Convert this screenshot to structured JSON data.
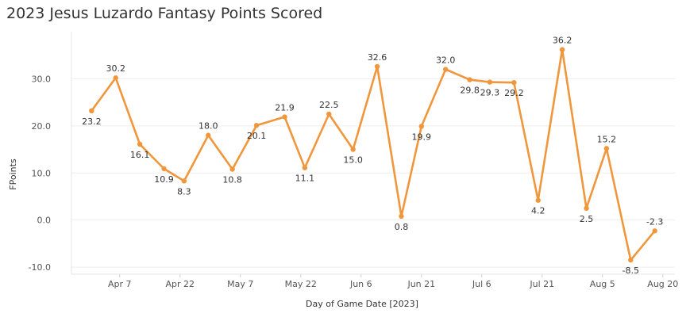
{
  "chart_data": {
    "type": "line",
    "title": "2023 Jesus Luzardo Fantasy Points Scored",
    "xlabel": "Day of Game Date [2023]",
    "ylabel": "FPoints",
    "ylim": [
      -11.5,
      40
    ],
    "grid": true,
    "y_ticks": [
      {
        "value": -10,
        "label": "-10.0"
      },
      {
        "value": 0,
        "label": "0.0"
      },
      {
        "value": 10,
        "label": "10.0"
      },
      {
        "value": 20,
        "label": "20.0"
      },
      {
        "value": 30,
        "label": "30.0"
      }
    ],
    "x_ticks": [
      {
        "date": "2023-04-07",
        "label": "Apr 7"
      },
      {
        "date": "2023-04-22",
        "label": "Apr 22"
      },
      {
        "date": "2023-05-07",
        "label": "May 7"
      },
      {
        "date": "2023-05-22",
        "label": "May 22"
      },
      {
        "date": "2023-06-06",
        "label": "Jun 6"
      },
      {
        "date": "2023-06-21",
        "label": "Jun 21"
      },
      {
        "date": "2023-07-06",
        "label": "Jul 6"
      },
      {
        "date": "2023-07-21",
        "label": "Jul 21"
      },
      {
        "date": "2023-08-05",
        "label": "Aug 5"
      },
      {
        "date": "2023-08-20",
        "label": "Aug 20"
      }
    ],
    "xlim": [
      "2023-03-26",
      "2023-08-23"
    ],
    "color": "#F0963C",
    "series": [
      {
        "points": [
          {
            "date": "2023-03-31",
            "value": 23.2,
            "label": "23.2"
          },
          {
            "date": "2023-04-06",
            "value": 30.2,
            "label": "30.2"
          },
          {
            "date": "2023-04-12",
            "value": 16.1,
            "label": "16.1"
          },
          {
            "date": "2023-04-18",
            "value": 10.9,
            "label": "10.9"
          },
          {
            "date": "2023-04-23",
            "value": 8.3,
            "label": "8.3"
          },
          {
            "date": "2023-04-29",
            "value": 18.0,
            "label": "18.0"
          },
          {
            "date": "2023-05-05",
            "value": 10.8,
            "label": "10.8"
          },
          {
            "date": "2023-05-11",
            "value": 20.1,
            "label": "20.1"
          },
          {
            "date": "2023-05-18",
            "value": 21.9,
            "label": "21.9"
          },
          {
            "date": "2023-05-23",
            "value": 11.1,
            "label": "11.1"
          },
          {
            "date": "2023-05-29",
            "value": 22.5,
            "label": "22.5"
          },
          {
            "date": "2023-06-04",
            "value": 15.0,
            "label": "15.0"
          },
          {
            "date": "2023-06-10",
            "value": 32.6,
            "label": "32.6"
          },
          {
            "date": "2023-06-16",
            "value": 0.8,
            "label": "0.8"
          },
          {
            "date": "2023-06-21",
            "value": 19.9,
            "label": "19.9"
          },
          {
            "date": "2023-06-27",
            "value": 32.0,
            "label": "32.0"
          },
          {
            "date": "2023-07-03",
            "value": 29.8,
            "label": "29.8"
          },
          {
            "date": "2023-07-08",
            "value": 29.3,
            "label": "29.3"
          },
          {
            "date": "2023-07-14",
            "value": 29.2,
            "label": "29.2"
          },
          {
            "date": "2023-07-20",
            "value": 4.2,
            "label": "4.2"
          },
          {
            "date": "2023-07-26",
            "value": 36.2,
            "label": "36.2"
          },
          {
            "date": "2023-08-01",
            "value": 2.5,
            "label": "2.5"
          },
          {
            "date": "2023-08-06",
            "value": 15.2,
            "label": "15.2"
          },
          {
            "date": "2023-08-12",
            "value": -8.5,
            "label": "-8.5"
          },
          {
            "date": "2023-08-18",
            "value": -2.3,
            "label": "-2.3"
          }
        ]
      }
    ]
  }
}
